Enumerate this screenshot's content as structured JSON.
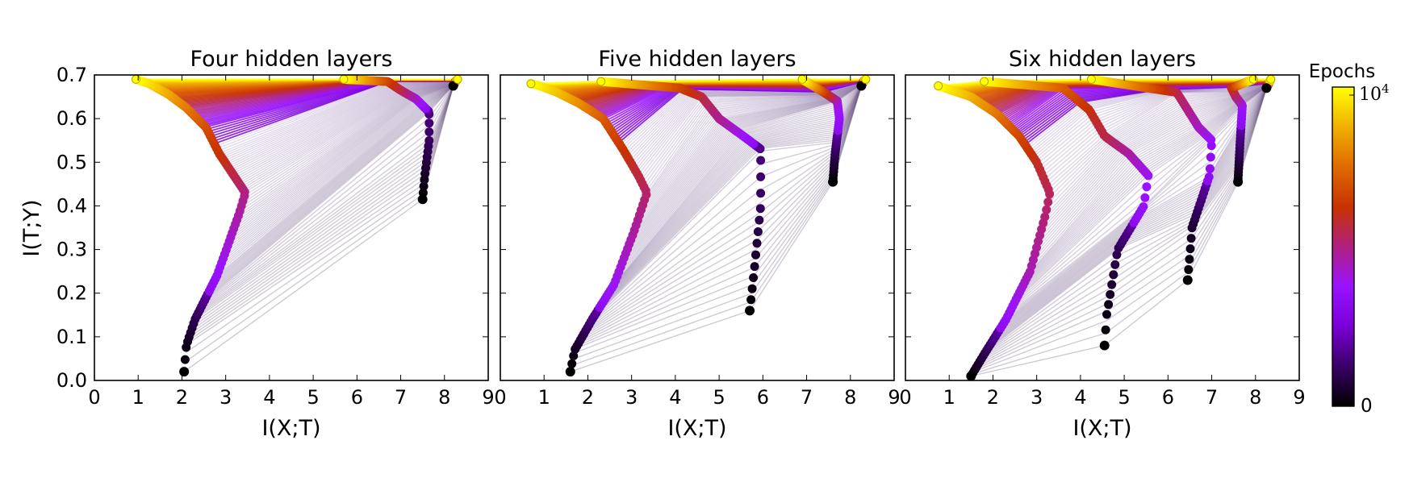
{
  "chart_data": [
    {
      "type": "line",
      "title": "Four hidden layers",
      "xlabel": "I(X;T)",
      "ylabel": "I(T;Y)",
      "xlim": [
        0,
        9
      ],
      "ylim": [
        0,
        0.7
      ],
      "xticks": [
        "0",
        "1",
        "2",
        "3",
        "4",
        "5",
        "6",
        "7",
        "8",
        "9"
      ],
      "yticks": [
        "0.0",
        "0.1",
        "0.2",
        "0.3",
        "0.4",
        "0.5",
        "0.6",
        "0.7"
      ],
      "layers": [
        {
          "name": "",
          "points": [
            [
              2.05,
              0.02
            ],
            [
              2.1,
              0.08
            ],
            [
              2.3,
              0.14
            ],
            [
              2.8,
              0.24
            ],
            [
              3.3,
              0.38
            ],
            [
              3.45,
              0.43
            ],
            [
              3.25,
              0.46
            ],
            [
              2.85,
              0.52
            ],
            [
              2.55,
              0.58
            ],
            [
              2.1,
              0.625
            ],
            [
              1.7,
              0.655
            ],
            [
              1.25,
              0.68
            ],
            [
              0.95,
              0.69
            ]
          ]
        },
        {
          "name": "",
          "points": [
            [
              7.5,
              0.415
            ],
            [
              7.55,
              0.47
            ],
            [
              7.65,
              0.55
            ],
            [
              7.65,
              0.615
            ],
            [
              7.35,
              0.645
            ],
            [
              7.0,
              0.665
            ],
            [
              6.7,
              0.685
            ],
            [
              5.7,
              0.69
            ]
          ]
        },
        {
          "name": "",
          "points": [
            [
              8.2,
              0.675
            ],
            [
              8.25,
              0.685
            ],
            [
              8.3,
              0.69
            ]
          ]
        }
      ]
    },
    {
      "type": "line",
      "title": "Five hidden layers",
      "xlabel": "I(X;T)",
      "ylabel": "",
      "xlim": [
        0,
        9
      ],
      "ylim": [
        0,
        0.7
      ],
      "xticks": [
        "0",
        "1",
        "2",
        "3",
        "4",
        "5",
        "6",
        "7",
        "8",
        "9"
      ],
      "yticks": [],
      "layers": [
        {
          "name": "",
          "points": [
            [
              1.6,
              0.02
            ],
            [
              1.7,
              0.07
            ],
            [
              2.1,
              0.14
            ],
            [
              2.6,
              0.22
            ],
            [
              3.05,
              0.34
            ],
            [
              3.35,
              0.43
            ],
            [
              3.15,
              0.47
            ],
            [
              2.8,
              0.53
            ],
            [
              2.35,
              0.6
            ],
            [
              1.8,
              0.635
            ],
            [
              1.3,
              0.66
            ],
            [
              0.9,
              0.675
            ],
            [
              0.7,
              0.68
            ]
          ]
        },
        {
          "name": "",
          "points": [
            [
              5.7,
              0.16
            ],
            [
              5.8,
              0.25
            ],
            [
              5.95,
              0.4
            ],
            [
              5.95,
              0.53
            ],
            [
              5.55,
              0.56
            ],
            [
              5.0,
              0.6
            ],
            [
              4.6,
              0.65
            ],
            [
              4.1,
              0.67
            ],
            [
              2.3,
              0.685
            ]
          ]
        },
        {
          "name": "",
          "points": [
            [
              7.6,
              0.455
            ],
            [
              7.65,
              0.52
            ],
            [
              7.75,
              0.6
            ],
            [
              7.7,
              0.64
            ],
            [
              7.4,
              0.66
            ],
            [
              6.9,
              0.69
            ]
          ]
        },
        {
          "name": "",
          "points": [
            [
              8.25,
              0.675
            ],
            [
              8.3,
              0.685
            ],
            [
              8.35,
              0.69
            ]
          ]
        }
      ]
    },
    {
      "type": "line",
      "title": "Six hidden layers",
      "xlabel": "I(X;T)",
      "ylabel": "",
      "xlim": [
        0,
        9
      ],
      "ylim": [
        0,
        0.7
      ],
      "xticks": [
        "0",
        "1",
        "2",
        "3",
        "4",
        "5",
        "6",
        "7",
        "8",
        "9"
      ],
      "yticks": [],
      "layers": [
        {
          "name": "",
          "points": [
            [
              1.5,
              0.01
            ],
            [
              1.8,
              0.06
            ],
            [
              2.3,
              0.14
            ],
            [
              2.85,
              0.25
            ],
            [
              3.2,
              0.38
            ],
            [
              3.3,
              0.43
            ],
            [
              3.0,
              0.5
            ],
            [
              2.6,
              0.56
            ],
            [
              2.1,
              0.61
            ],
            [
              1.5,
              0.65
            ],
            [
              0.75,
              0.675
            ]
          ]
        },
        {
          "name": "",
          "points": [
            [
              4.55,
              0.08
            ],
            [
              4.6,
              0.15
            ],
            [
              4.85,
              0.3
            ],
            [
              5.45,
              0.4
            ],
            [
              5.55,
              0.47
            ],
            [
              5.1,
              0.52
            ],
            [
              4.55,
              0.56
            ],
            [
              4.2,
              0.62
            ],
            [
              3.6,
              0.67
            ],
            [
              1.8,
              0.685
            ]
          ]
        },
        {
          "name": "",
          "points": [
            [
              6.45,
              0.23
            ],
            [
              6.55,
              0.35
            ],
            [
              6.95,
              0.47
            ],
            [
              7.0,
              0.55
            ],
            [
              6.7,
              0.58
            ],
            [
              6.45,
              0.62
            ],
            [
              6.2,
              0.66
            ],
            [
              4.25,
              0.69
            ]
          ]
        },
        {
          "name": "",
          "points": [
            [
              7.6,
              0.455
            ],
            [
              7.65,
              0.55
            ],
            [
              7.7,
              0.63
            ],
            [
              7.55,
              0.65
            ],
            [
              7.45,
              0.67
            ],
            [
              7.95,
              0.69
            ]
          ]
        },
        {
          "name": "",
          "points": [
            [
              8.25,
              0.67
            ],
            [
              8.3,
              0.68
            ],
            [
              8.35,
              0.69
            ]
          ]
        }
      ]
    }
  ],
  "colorbar": {
    "title": "Epochs",
    "max_label": "10",
    "max_exponent": "4",
    "min_label": "0",
    "colormap": "gnuplot",
    "stops": [
      "#000000",
      "#3a0066",
      "#7a00d6",
      "#9a12ff",
      "#b02080",
      "#c83200",
      "#e06a00",
      "#f0b000",
      "#ffff00"
    ]
  }
}
